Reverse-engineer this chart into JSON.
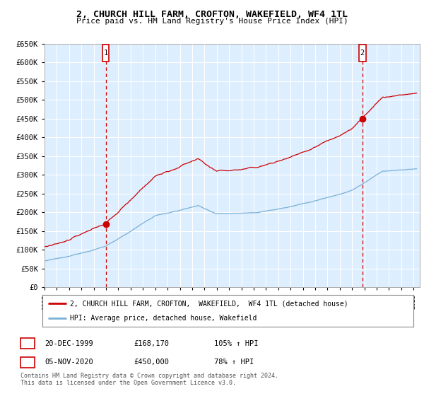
{
  "title": "2, CHURCH HILL FARM, CROFTON, WAKEFIELD, WF4 1TL",
  "subtitle": "Price paid vs. HM Land Registry's House Price Index (HPI)",
  "ylim": [
    0,
    650000
  ],
  "yticks": [
    0,
    50000,
    100000,
    150000,
    200000,
    250000,
    300000,
    350000,
    400000,
    450000,
    500000,
    550000,
    600000,
    650000
  ],
  "xlim_start": 1995.0,
  "xlim_end": 2025.5,
  "sale1_x": 1999.97,
  "sale1_y": 168170,
  "sale1_label": "20-DEC-1999",
  "sale1_price": "£168,170",
  "sale1_hpi": "105% ↑ HPI",
  "sale2_x": 2020.84,
  "sale2_y": 450000,
  "sale2_label": "05-NOV-2020",
  "sale2_price": "£450,000",
  "sale2_hpi": "78% ↑ HPI",
  "legend1": "2, CHURCH HILL FARM, CROFTON,  WAKEFIELD,  WF4 1TL (detached house)",
  "legend2": "HPI: Average price, detached house, Wakefield",
  "footnote": "Contains HM Land Registry data © Crown copyright and database right 2024.\nThis data is licensed under the Open Government Licence v3.0.",
  "line_color_red": "#cc0000",
  "line_color_blue": "#7ab0d4",
  "bg_color": "#ddeeff",
  "grid_color": "#ffffff"
}
